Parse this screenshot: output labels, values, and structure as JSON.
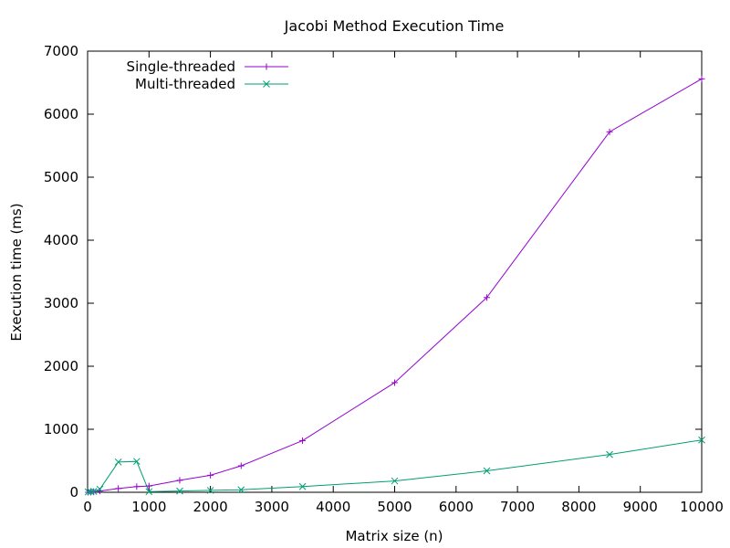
{
  "chart_data": {
    "type": "line",
    "title": "Jacobi Method Execution Time",
    "xlabel": "Matrix size (n)",
    "ylabel": "Execution time (ms)",
    "xlim": [
      0,
      10000
    ],
    "ylim": [
      0,
      7000
    ],
    "xticks": [
      0,
      1000,
      2000,
      3000,
      4000,
      5000,
      6000,
      7000,
      8000,
      9000,
      10000
    ],
    "yticks": [
      0,
      1000,
      2000,
      3000,
      4000,
      5000,
      6000,
      7000
    ],
    "grid": false,
    "legend_position": "top-left",
    "series": [
      {
        "name": "Single-threaded",
        "color": "#9400d3",
        "marker": "plus",
        "points": [
          [
            10,
            0
          ],
          [
            50,
            2
          ],
          [
            100,
            5
          ],
          [
            200,
            20
          ],
          [
            500,
            60
          ],
          [
            800,
            90
          ],
          [
            1000,
            100
          ],
          [
            1500,
            190
          ],
          [
            2000,
            270
          ],
          [
            2500,
            420
          ],
          [
            3500,
            820
          ],
          [
            5000,
            1740
          ],
          [
            6500,
            3090
          ],
          [
            8500,
            5720
          ],
          [
            10000,
            6560
          ]
        ]
      },
      {
        "name": "Multi-threaded",
        "color": "#009e73",
        "marker": "cross",
        "points": [
          [
            10,
            5
          ],
          [
            50,
            10
          ],
          [
            100,
            15
          ],
          [
            200,
            50
          ],
          [
            500,
            480
          ],
          [
            800,
            490
          ],
          [
            1000,
            10
          ],
          [
            1500,
            20
          ],
          [
            2000,
            30
          ],
          [
            2500,
            40
          ],
          [
            3500,
            90
          ],
          [
            5000,
            180
          ],
          [
            6500,
            340
          ],
          [
            8500,
            600
          ],
          [
            10000,
            830
          ]
        ]
      }
    ]
  }
}
